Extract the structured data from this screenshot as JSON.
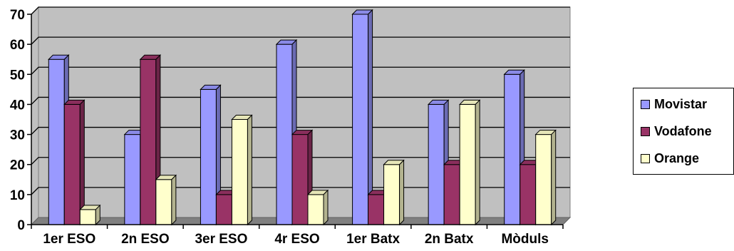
{
  "chart_data": {
    "type": "bar",
    "categories": [
      "1er ESO",
      "2n ESO",
      "3er ESO",
      "4r ESO",
      "1er Batx",
      "2n Batx",
      "Mòduls"
    ],
    "series": [
      {
        "name": "Movistar",
        "values": [
          55,
          30,
          45,
          60,
          70,
          40,
          50
        ]
      },
      {
        "name": "Vodafone",
        "values": [
          40,
          55,
          10,
          30,
          10,
          20,
          20
        ]
      },
      {
        "name": "Orange",
        "values": [
          5,
          15,
          35,
          10,
          20,
          40,
          30
        ]
      }
    ],
    "ylim": [
      0,
      70
    ],
    "yticks": [
      "0",
      "10",
      "20",
      "30",
      "40",
      "50",
      "60",
      "70"
    ],
    "grid": true,
    "legend_position": "right",
    "colors": {
      "Movistar": "#9999ff",
      "Vodafone": "#993366",
      "Orange": "#ffffcc",
      "plot_background": "#c0c0c0",
      "floor": "#808080"
    },
    "style": "3d-clustered-column"
  }
}
